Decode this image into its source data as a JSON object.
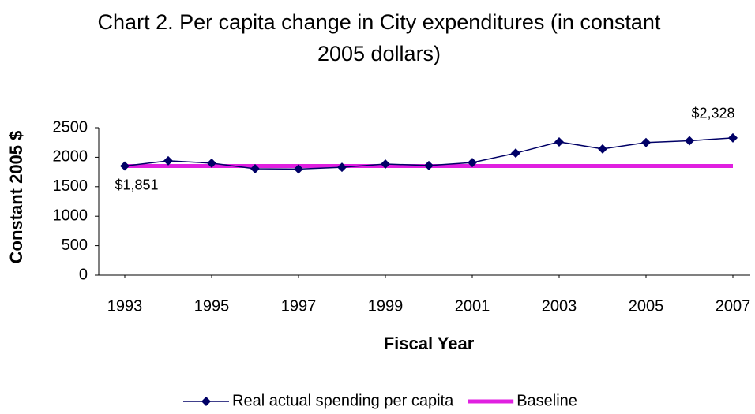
{
  "chart_data": {
    "type": "line",
    "title": "Chart 2. Per capita change in City expenditures (in constant 2005 dollars)",
    "x_label": "Fiscal Year",
    "y_label": "Constant 2005 $",
    "x": [
      1993,
      1994,
      1995,
      1996,
      1997,
      1998,
      1999,
      2000,
      2001,
      2002,
      2003,
      2004,
      2005,
      2006,
      2007
    ],
    "xlim": [
      1992.4,
      2007.4
    ],
    "xticks": [
      1993,
      1995,
      1997,
      1999,
      2001,
      2003,
      2005,
      2007
    ],
    "ylim": [
      0,
      2500
    ],
    "yticks": [
      0,
      500,
      1000,
      1500,
      2000,
      2500
    ],
    "grid": false,
    "legend": "bottom",
    "series": [
      {
        "name": "Real actual spending per capita",
        "color": "#000066",
        "marker": "diamond",
        "values": [
          1851,
          1940,
          1900,
          1805,
          1800,
          1830,
          1885,
          1860,
          1910,
          2070,
          2260,
          2140,
          2250,
          2280,
          2328
        ],
        "value_labels": [
          "$1,851",
          null,
          null,
          null,
          null,
          null,
          null,
          null,
          null,
          null,
          null,
          null,
          null,
          null,
          "$2,328"
        ]
      },
      {
        "name": "Baseline",
        "color": "#e020e0",
        "values": [
          1851,
          1851,
          1851,
          1851,
          1851,
          1851,
          1851,
          1851,
          1851,
          1851,
          1851,
          1851,
          1851,
          1851,
          1851
        ]
      }
    ]
  }
}
